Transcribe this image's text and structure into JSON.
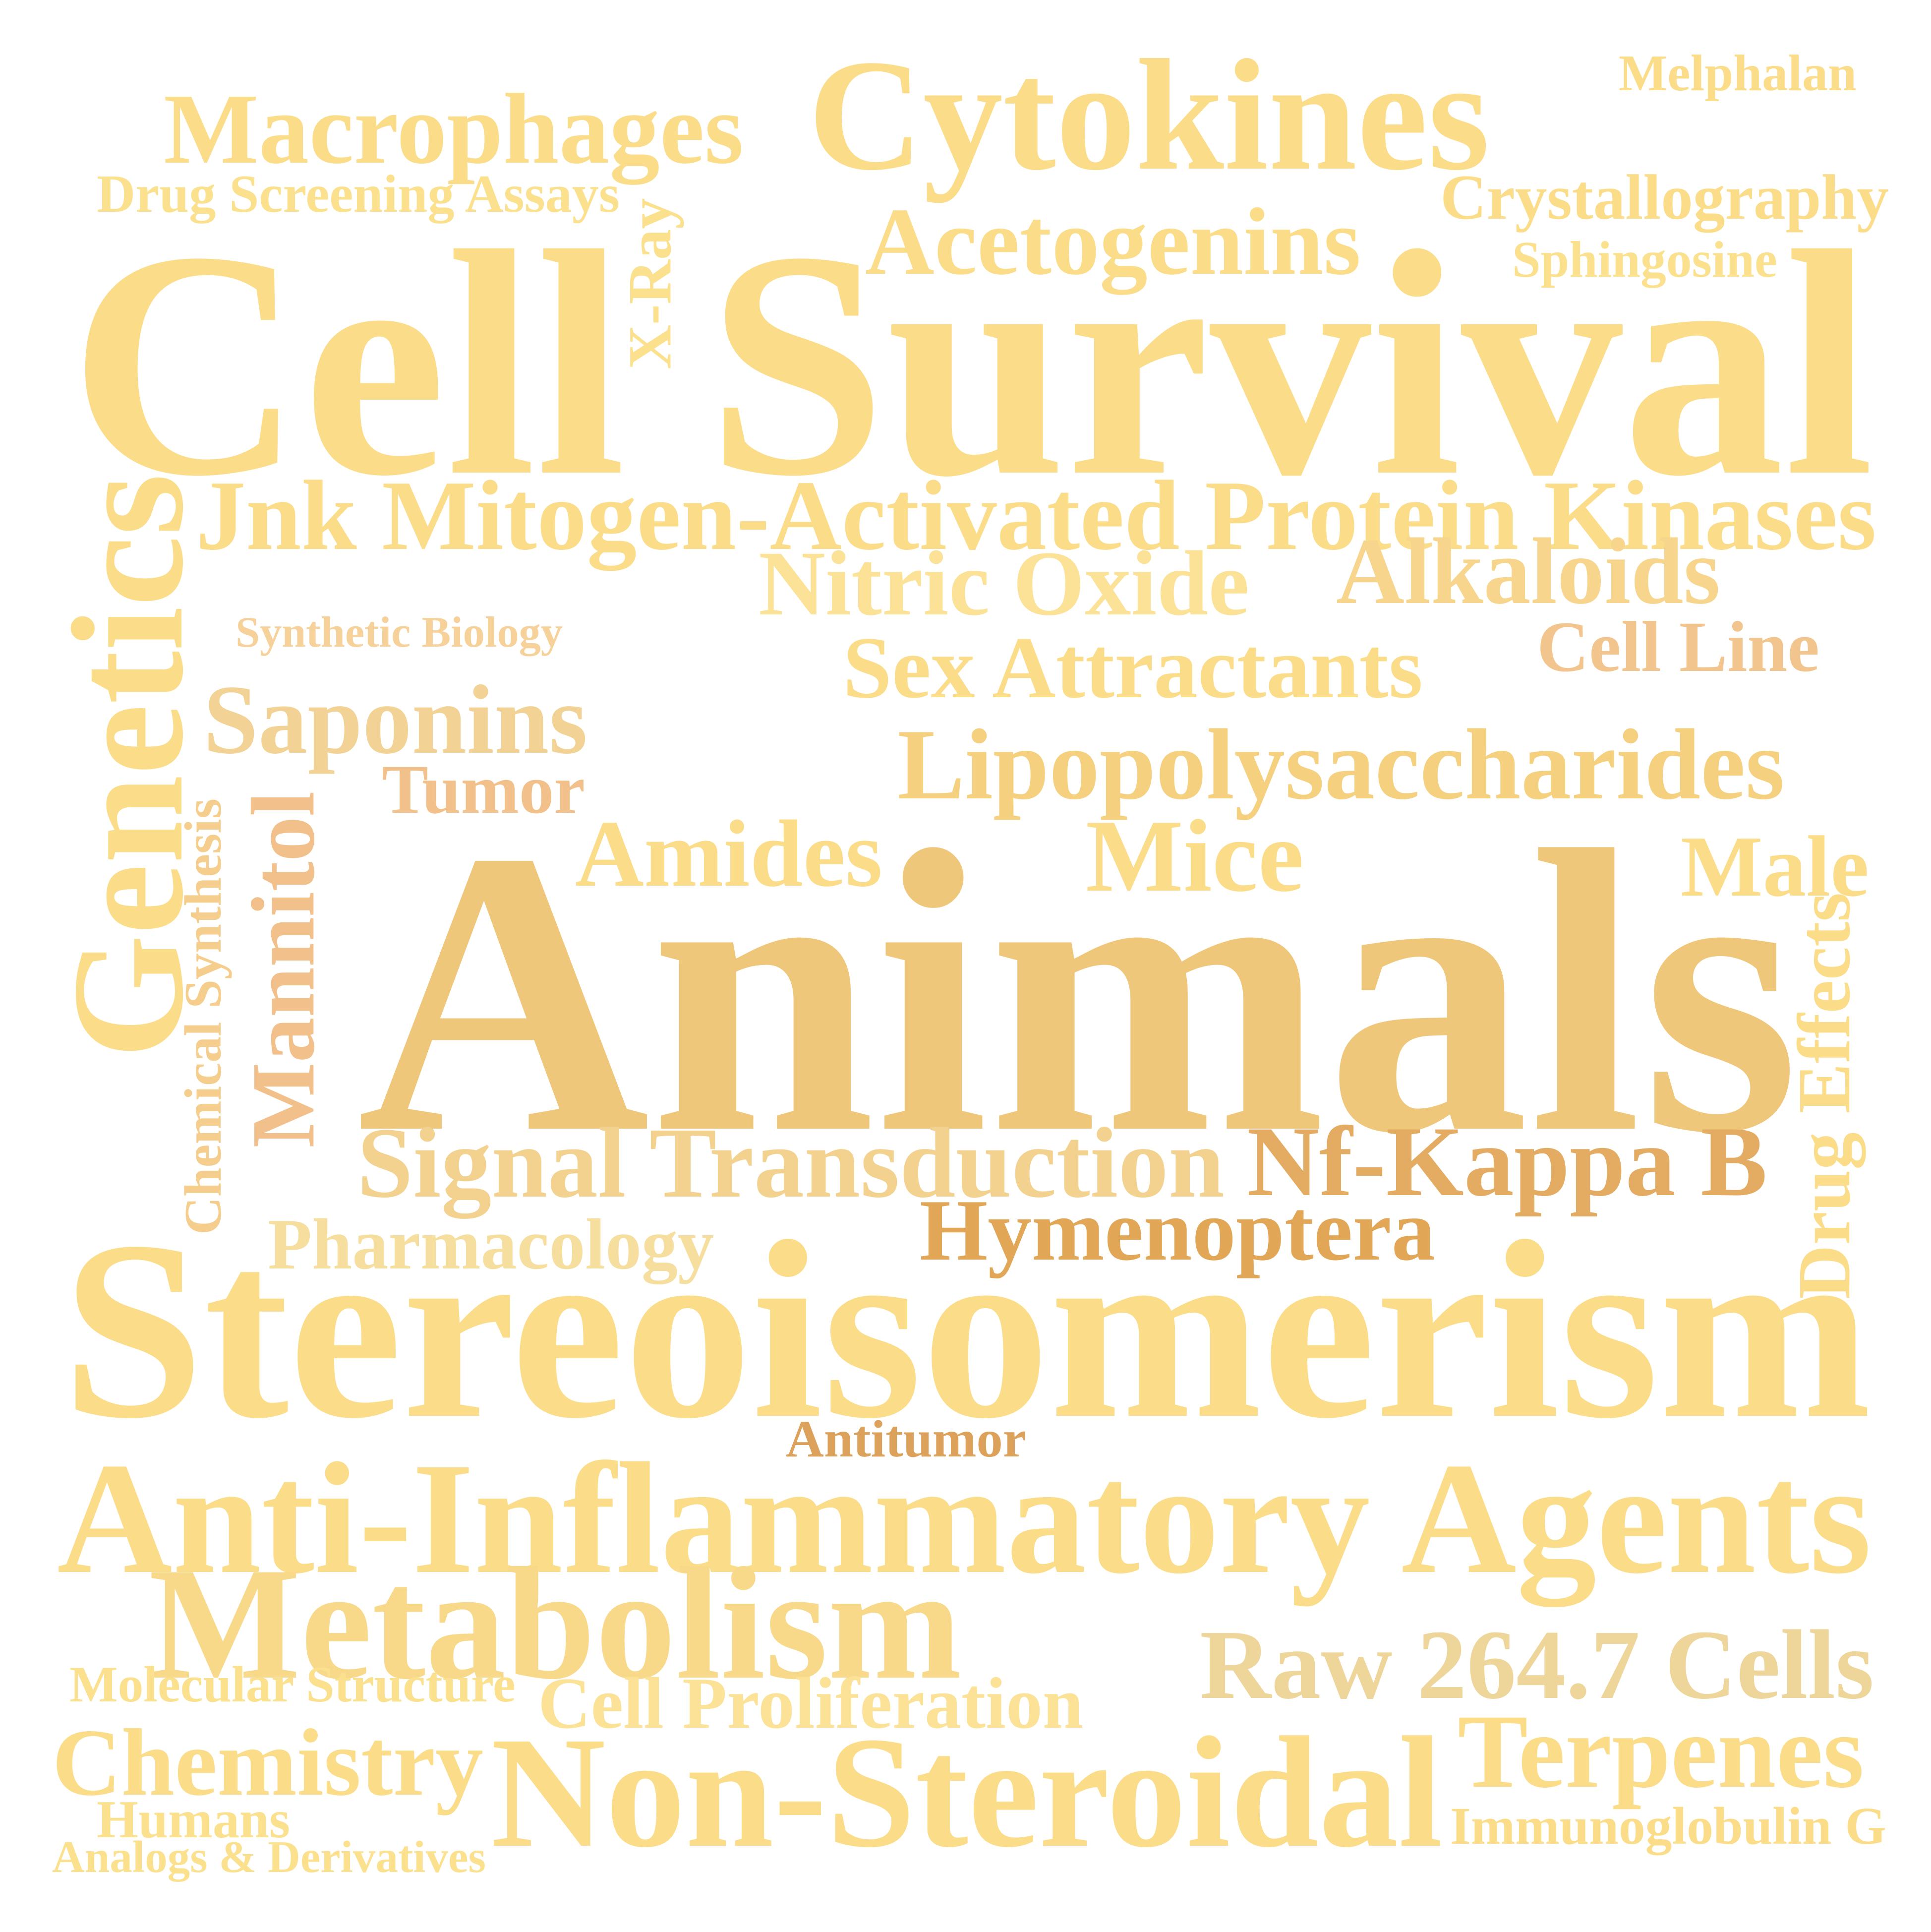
{
  "words": [
    {
      "id": "melphalan",
      "text": "Melphalan",
      "color": "#FBDC88",
      "rotated": false
    },
    {
      "id": "macrophages",
      "text": "Macrophages",
      "color": "#FBDC88",
      "rotated": false
    },
    {
      "id": "cytokines",
      "text": "Cytokines",
      "color": "#FBDC88",
      "rotated": false
    },
    {
      "id": "drug-screening-assays",
      "text": "Drug Screening Assays",
      "color": "#FBE08E",
      "rotated": false
    },
    {
      "id": "crystallography",
      "text": "Crystallography",
      "color": "#FBDC88",
      "rotated": false
    },
    {
      "id": "x-ray",
      "text": "X-Ray",
      "color": "#FBE08E",
      "rotated": true
    },
    {
      "id": "acetogenins",
      "text": "Acetogenins",
      "color": "#FBDC88",
      "rotated": false
    },
    {
      "id": "sphingosine",
      "text": "Sphingosine",
      "color": "#FBE08E",
      "rotated": false
    },
    {
      "id": "cell-survival",
      "text": "Cell Survival",
      "color": "#FBDC88",
      "rotated": false
    },
    {
      "id": "jnk-kinases",
      "text": "Jnk Mitogen-Activated Protein Kinases",
      "color": "#FBDC88",
      "rotated": false
    },
    {
      "id": "genetics",
      "text": "Genetics",
      "color": "#FBDC88",
      "rotated": true
    },
    {
      "id": "nitric-oxide",
      "text": "Nitric Oxide",
      "color": "#FBE296",
      "rotated": false
    },
    {
      "id": "alkaloids",
      "text": "Alkaloids",
      "color": "#F7D58C",
      "rotated": false
    },
    {
      "id": "synthetic-biology",
      "text": "Synthetic Biology",
      "color": "#F7D19A",
      "rotated": false
    },
    {
      "id": "cell-line",
      "text": "Cell Line",
      "color": "#F2C58E",
      "rotated": false
    },
    {
      "id": "sex-attractants",
      "text": "Sex Attractants",
      "color": "#FBDC88",
      "rotated": false
    },
    {
      "id": "saponins",
      "text": "Saponins",
      "color": "#F2D395",
      "rotated": false
    },
    {
      "id": "lipopolysaccharides",
      "text": "Lipopolysaccharides",
      "color": "#F5D07F",
      "rotated": false
    },
    {
      "id": "tumor",
      "text": "Tumor",
      "color": "#F2C08A",
      "rotated": false
    },
    {
      "id": "mannitol",
      "text": "Mannitol",
      "color": "#F2C08A",
      "rotated": true
    },
    {
      "id": "chemical-synthesis",
      "text": "Chemical Synthesis",
      "color": "#F5CE8E",
      "rotated": true
    },
    {
      "id": "amides",
      "text": "Amides",
      "color": "#FBDC88",
      "rotated": false
    },
    {
      "id": "mice",
      "text": "Mice",
      "color": "#FBDC88",
      "rotated": false
    },
    {
      "id": "male",
      "text": "Male",
      "color": "#FBDC88",
      "rotated": false
    },
    {
      "id": "animals",
      "text": "Animals",
      "color": "#EFC77B",
      "rotated": false
    },
    {
      "id": "drug-effects",
      "text": "Drug Effects",
      "color": "#FBDC88",
      "rotated": true
    },
    {
      "id": "signal-transduction",
      "text": "Signal Transduction",
      "color": "#F3D290",
      "rotated": false
    },
    {
      "id": "nf-kappa-b",
      "text": "Nf-Kappa B",
      "color": "#E3AC62",
      "rotated": false
    },
    {
      "id": "hymenoptera",
      "text": "Hymenoptera",
      "color": "#E1A656",
      "rotated": false
    },
    {
      "id": "pharmacology",
      "text": "Pharmacology",
      "color": "#F5DE9E",
      "rotated": false
    },
    {
      "id": "stereoisomerism",
      "text": "Stereoisomerism",
      "color": "#FBDC88",
      "rotated": false
    },
    {
      "id": "antitumor",
      "text": "Antitumor",
      "color": "#DCA15A",
      "rotated": false
    },
    {
      "id": "anti-inflammatory-agents",
      "text": "Anti-Inflammatory Agents",
      "color": "#FBDC88",
      "rotated": false
    },
    {
      "id": "metabolism",
      "text": "Metabolism",
      "color": "#F8D889",
      "rotated": false
    },
    {
      "id": "raw-cells",
      "text": "Raw 264.7 Cells",
      "color": "#EED59A",
      "rotated": false
    },
    {
      "id": "molecular-structure",
      "text": "Molecular Structure",
      "color": "#FBE08E",
      "rotated": false
    },
    {
      "id": "cell-proliferation",
      "text": "Cell Proliferation",
      "color": "#FBE296",
      "rotated": false
    },
    {
      "id": "terpenes",
      "text": "Terpenes",
      "color": "#FBDC88",
      "rotated": false
    },
    {
      "id": "chemistry",
      "text": "Chemistry",
      "color": "#FBDC88",
      "rotated": false
    },
    {
      "id": "non-steroidal",
      "text": "Non-Steroidal",
      "color": "#FBDC88",
      "rotated": false
    },
    {
      "id": "immunoglobulin-g",
      "text": "Immunoglobulin G",
      "color": "#FBDC88",
      "rotated": false
    },
    {
      "id": "humans",
      "text": "Humans",
      "color": "#FBE08E",
      "rotated": false
    },
    {
      "id": "analogs-derivatives",
      "text": "Analogs & Derivatives",
      "color": "#FBE08E",
      "rotated": false
    }
  ]
}
